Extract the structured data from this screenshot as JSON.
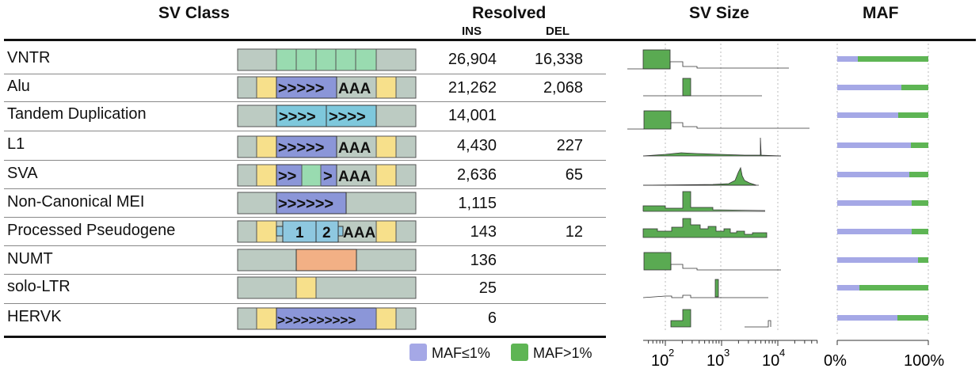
{
  "headers": {
    "sv_class": "SV Class",
    "resolved": "Resolved",
    "ins": "INS",
    "del": "DEL",
    "sv_size": "SV Size",
    "maf": "MAF"
  },
  "rows": [
    {
      "label": "VNTR",
      "ins": "26,904",
      "del": "16,338",
      "maf_low": 0.23
    },
    {
      "label": "Alu",
      "ins": "21,262",
      "del": "2,068",
      "maf_low": 0.7
    },
    {
      "label": "Tandem Duplication",
      "ins": "14,001",
      "del": "",
      "maf_low": 0.67
    },
    {
      "label": "L1",
      "ins": "4,430",
      "del": "227",
      "maf_low": 0.81
    },
    {
      "label": "SVA",
      "ins": "2,636",
      "del": "65",
      "maf_low": 0.79
    },
    {
      "label": "Non-Canonical MEI",
      "ins": "1,115",
      "del": "",
      "maf_low": 0.82
    },
    {
      "label": "Processed Pseudogene",
      "ins": "143",
      "del": "12",
      "maf_low": 0.82
    },
    {
      "label": "NUMT",
      "ins": "136",
      "del": "",
      "maf_low": 0.89
    },
    {
      "label": "solo-LTR",
      "ins": "25",
      "del": "",
      "maf_low": 0.24
    },
    {
      "label": "HERVK",
      "ins": "6",
      "del": "",
      "maf_low": 0.66
    }
  ],
  "diagram_text": {
    "alu_arrows": ">>>>>",
    "alu_polya": "AAA",
    "td_arrows_1": ">>>>",
    "td_arrows_2": ">>>>",
    "l1_arrows": ">>>>>",
    "l1_polya": "AAA",
    "sva_arrows_1": ">>",
    "sva_arrows_2": ">",
    "sva_polya": "AAA",
    "ncmei_arrows": ">>>>>>",
    "pp_exon1": "1",
    "pp_exon2": "2",
    "pp_polya": "AAA",
    "hervk_arrows": ">>>>>>>>>>"
  },
  "legend": {
    "low_label": "MAF≤1%",
    "high_label": "MAF>1%"
  },
  "size_axis": {
    "tick_labels": [
      "10",
      "10",
      "10"
    ],
    "tick_exponents": [
      "2",
      "3",
      "4"
    ],
    "scale": "log10"
  },
  "maf_axis": {
    "tick_labels": [
      "0%",
      "100%"
    ]
  },
  "colors": {
    "flank_gray": "#bccbc2",
    "tsd_yellow": "#f7e08b",
    "repeat_blue": "#8b96d8",
    "td_cyan": "#7ec8dc",
    "vntr_green": "#99dbb0",
    "numt_orange": "#f2b085",
    "pp_lightblue": "#8ec8e0",
    "hist_green": "#5aaa52",
    "maf_low": "#a5a8e6",
    "maf_high": "#5eb554"
  }
}
